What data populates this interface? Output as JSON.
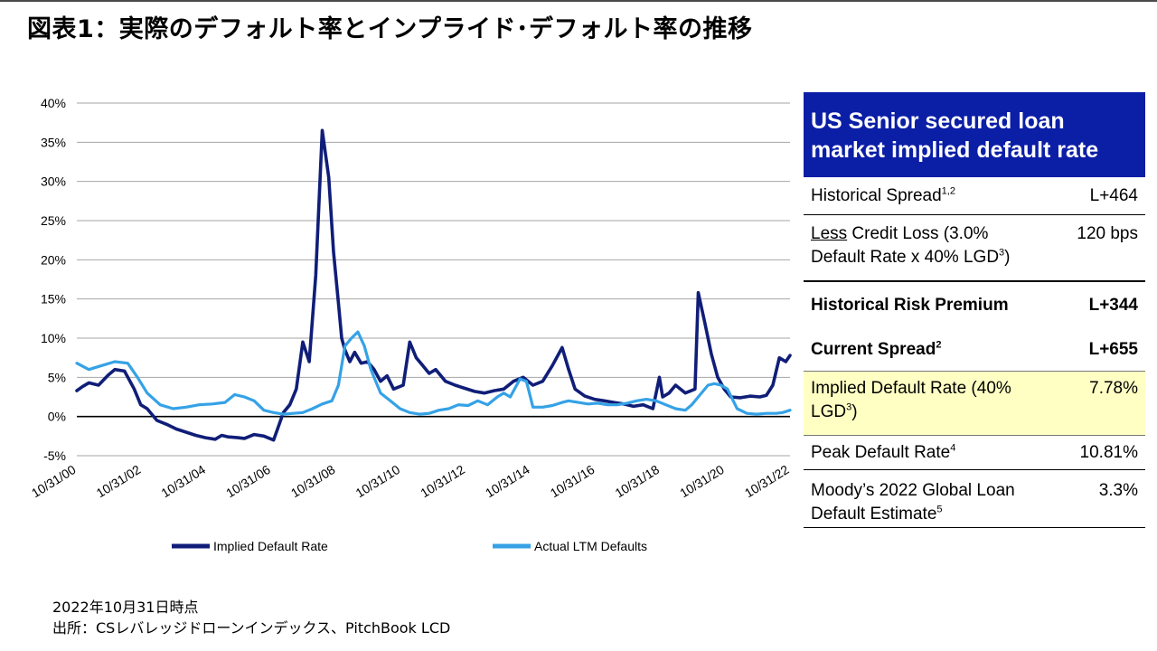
{
  "title": "図表1：実際のデフォルト率とインプライド･デフォルト率の推移",
  "chart_data": {
    "type": "line",
    "y_ticks": [
      "40%",
      "35%",
      "30%",
      "25%",
      "20%",
      "15%",
      "10%",
      "5%",
      "0%",
      "-5%"
    ],
    "x_ticks": [
      "10/31/00",
      "10/31/02",
      "10/31/04",
      "10/31/06",
      "10/31/08",
      "10/31/10",
      "10/31/12",
      "10/31/14",
      "10/31/16",
      "10/31/18",
      "10/31/20",
      "10/31/22"
    ],
    "ylim": [
      -5,
      40
    ],
    "xlim": [
      2000.83,
      2022.83
    ],
    "grid": true,
    "legend_position": "bottom",
    "series": [
      {
        "name": "Implied Default Rate",
        "color": "#101e78",
        "x": [
          2000.83,
          2001.0,
          2001.2,
          2001.5,
          2001.8,
          2002.0,
          2002.3,
          2002.6,
          2002.8,
          2003.0,
          2003.3,
          2003.6,
          2003.9,
          2004.2,
          2004.5,
          2004.8,
          2005.1,
          2005.3,
          2005.5,
          2005.8,
          2006.0,
          2006.3,
          2006.6,
          2006.9,
          2007.2,
          2007.4,
          2007.6,
          2007.8,
          2008.0,
          2008.2,
          2008.4,
          2008.6,
          2008.75,
          2008.9,
          2009.0,
          2009.1,
          2009.25,
          2009.4,
          2009.6,
          2009.8,
          2010.0,
          2010.2,
          2010.4,
          2010.6,
          2010.9,
          2011.1,
          2011.3,
          2011.5,
          2011.7,
          2011.9,
          2012.2,
          2012.5,
          2012.8,
          2013.1,
          2013.4,
          2013.7,
          2014.0,
          2014.3,
          2014.6,
          2014.9,
          2015.2,
          2015.5,
          2015.8,
          2016.0,
          2016.2,
          2016.5,
          2016.8,
          2017.1,
          2017.4,
          2017.7,
          2018.0,
          2018.3,
          2018.6,
          2018.8,
          2018.9,
          2019.1,
          2019.3,
          2019.6,
          2019.9,
          2020.0,
          2020.2,
          2020.4,
          2020.6,
          2020.8,
          2021.0,
          2021.3,
          2021.6,
          2021.9,
          2022.1,
          2022.3,
          2022.5,
          2022.7,
          2022.83
        ],
        "y": [
          3.3,
          3.8,
          4.3,
          4.0,
          5.3,
          6.0,
          5.8,
          3.5,
          1.5,
          1.0,
          -0.5,
          -1.0,
          -1.6,
          -2.0,
          -2.4,
          -2.7,
          -2.9,
          -2.4,
          -2.6,
          -2.7,
          -2.8,
          -2.3,
          -2.5,
          -3.0,
          0.5,
          1.5,
          3.5,
          9.5,
          7.0,
          18.0,
          36.5,
          30.5,
          21.0,
          14.5,
          10.0,
          8.5,
          7.0,
          8.2,
          6.8,
          7.0,
          6.0,
          4.5,
          5.2,
          3.5,
          4.0,
          9.5,
          7.5,
          6.5,
          5.5,
          6.0,
          4.5,
          4.0,
          3.6,
          3.2,
          3.0,
          3.3,
          3.5,
          4.5,
          5.0,
          4.0,
          4.5,
          6.5,
          8.8,
          6.0,
          3.5,
          2.6,
          2.2,
          2.0,
          1.8,
          1.6,
          1.3,
          1.5,
          1.0,
          5.0,
          2.5,
          3.0,
          4.0,
          3.0,
          3.5,
          15.8,
          12.0,
          8.0,
          5.0,
          3.5,
          2.5,
          2.4,
          2.6,
          2.5,
          2.7,
          4.0,
          7.5,
          7.0,
          7.8
        ]
      },
      {
        "name": "Actual LTM Defaults",
        "color": "#35a2e6",
        "x": [
          2000.83,
          2001.2,
          2001.6,
          2002.0,
          2002.4,
          2002.7,
          2003.0,
          2003.4,
          2003.8,
          2004.2,
          2004.6,
          2005.0,
          2005.4,
          2005.7,
          2006.0,
          2006.3,
          2006.6,
          2006.9,
          2007.2,
          2007.5,
          2007.8,
          2008.1,
          2008.4,
          2008.7,
          2008.9,
          2009.1,
          2009.3,
          2009.5,
          2009.7,
          2009.9,
          2010.2,
          2010.5,
          2010.8,
          2011.1,
          2011.4,
          2011.7,
          2012.0,
          2012.3,
          2012.6,
          2012.9,
          2013.2,
          2013.5,
          2013.8,
          2014.0,
          2014.2,
          2014.5,
          2014.7,
          2014.9,
          2015.2,
          2015.5,
          2015.8,
          2016.0,
          2016.3,
          2016.6,
          2016.9,
          2017.2,
          2017.5,
          2017.8,
          2018.1,
          2018.4,
          2018.7,
          2019.0,
          2019.3,
          2019.6,
          2019.8,
          2020.0,
          2020.3,
          2020.5,
          2020.7,
          2020.9,
          2021.2,
          2021.5,
          2021.8,
          2022.1,
          2022.4,
          2022.6,
          2022.83
        ],
        "y": [
          6.8,
          6.0,
          6.5,
          7.0,
          6.8,
          5.0,
          3.0,
          1.5,
          1.0,
          1.2,
          1.5,
          1.6,
          1.8,
          2.8,
          2.5,
          2.0,
          0.8,
          0.5,
          0.3,
          0.4,
          0.5,
          1.0,
          1.6,
          2.0,
          4.0,
          9.0,
          10.0,
          10.8,
          9.0,
          6.0,
          3.0,
          2.0,
          1.0,
          0.5,
          0.3,
          0.4,
          0.8,
          1.0,
          1.5,
          1.4,
          2.0,
          1.5,
          2.5,
          3.0,
          2.5,
          4.8,
          4.5,
          1.2,
          1.2,
          1.4,
          1.8,
          2.0,
          1.8,
          1.6,
          1.7,
          1.5,
          1.5,
          1.7,
          2.0,
          2.2,
          2.0,
          1.5,
          1.0,
          0.8,
          1.5,
          2.5,
          4.0,
          4.2,
          4.0,
          3.5,
          1.0,
          0.4,
          0.3,
          0.4,
          0.4,
          0.5,
          0.8
        ]
      }
    ]
  },
  "panel": {
    "heading_line1": "US Senior secured loan",
    "heading_line2": "market implied default rate",
    "historical_spread": {
      "label": "Historical Spread",
      "sup": "1,2",
      "value": "L+464"
    },
    "credit_loss": {
      "label_underlined": "Less",
      "label_line1_rest": " Credit Loss (3.0%",
      "label_line2": "Default Rate x 40% LGD",
      "sup": "3",
      "label_close": ")",
      "value": "120 bps"
    },
    "historical_risk_premium": {
      "label": "Historical Risk Premium",
      "value": "L+344"
    },
    "current_spread": {
      "label": "Current Spread",
      "sup": "2",
      "value": "L+655"
    },
    "implied_default_rate": {
      "label_line1": "Implied Default Rate (40%",
      "label_line2": "LGD",
      "sup": "3",
      "label_close": ")",
      "value": "7.78%"
    },
    "peak_default_rate": {
      "label": "Peak Default Rate",
      "sup": "4",
      "value": "10.81%"
    },
    "moodys": {
      "label_line1": "Moody’s 2022 Global Loan",
      "label_line2": "Default Estimate",
      "sup": "5",
      "value": "3.3%"
    }
  },
  "footer": {
    "date_note": "2022年10月31日時点",
    "source": "出所：CSレバレッジドローンインデックス、PitchBook LCD"
  }
}
